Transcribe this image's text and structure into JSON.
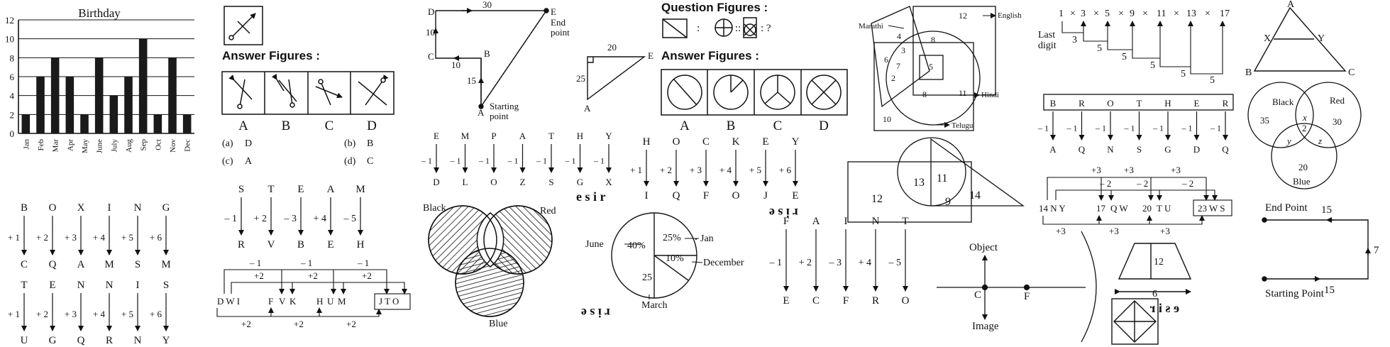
{
  "chart_data": {
    "type": "bar",
    "title": "Birthday",
    "categories": [
      "Jan",
      "Feb",
      "Mar",
      "Apr",
      "May",
      "June",
      "July",
      "Aug",
      "Sep",
      "Oct",
      "Nov",
      "Dec"
    ],
    "values": [
      2,
      6,
      8,
      6,
      2,
      8,
      4,
      6,
      10,
      2,
      8,
      2
    ],
    "yticks": [
      "0",
      "2",
      "4",
      "6",
      "8",
      "10",
      "12"
    ],
    "ylim": [
      0,
      12
    ],
    "grid": true
  },
  "answer_figures_1": {
    "heading": "Answer Figures :",
    "labels": [
      "A",
      "B",
      "C",
      "D"
    ],
    "options": [
      "(a)",
      "D",
      "(b)",
      "B",
      "(c)",
      "A",
      "(d)",
      "C"
    ]
  },
  "path_diagram": {
    "edges": [
      "30",
      "10",
      "10",
      "15"
    ],
    "letters": [
      "D",
      "E",
      "C",
      "B",
      "A"
    ],
    "end_label_1": "End",
    "end_label_2": "point",
    "start_label_1": "Starting",
    "start_label_2": "point"
  },
  "triangle": {
    "top": "20",
    "side": "25",
    "e": "E",
    "a": "A"
  },
  "question_figures": {
    "heading": "Question Figures :",
    "sep1": ":",
    "sep2": "::",
    "sep3": ": ?",
    "answer_heading": "Answer Figures :",
    "labels": [
      "A",
      "B",
      "C",
      "D"
    ]
  },
  "language_venn": {
    "english": "English",
    "marathi": "Marathi",
    "hindi": "Hindi",
    "telugu": "Telugu",
    "numbers": [
      "12",
      "4",
      "3",
      "6",
      "7",
      "8",
      "5",
      "2",
      "8",
      "11",
      "10"
    ]
  },
  "last_digit": {
    "label_1": "Last",
    "label_2": "digit",
    "series": [
      "1",
      "×",
      "3",
      "×",
      "5",
      "×",
      "9",
      "×",
      "11",
      "×",
      "13",
      "×",
      "17"
    ],
    "steps": [
      "3",
      "5",
      "5",
      "5",
      "5",
      "5"
    ]
  },
  "triangle_xy": {
    "letters": [
      "A",
      "X",
      "Y",
      "B",
      "C"
    ]
  },
  "color_venn_1": {
    "black": "Black",
    "red": "Red",
    "blue": "Blue",
    "values": [
      "35",
      "30",
      "20",
      "x",
      "2",
      "y",
      "z"
    ]
  },
  "brother_code": {
    "word": [
      "B",
      "R",
      "O",
      "T",
      "H",
      "E",
      "R"
    ],
    "steps": [
      "– 1",
      "– 1",
      "– 1",
      "– 1",
      "– 1",
      "– 1",
      "– 1"
    ],
    "result": [
      "A",
      "Q",
      "N",
      "S",
      "G",
      "D",
      "Q"
    ]
  },
  "emphasis_code": {
    "top": [
      "E",
      "M",
      "P",
      "A",
      "T",
      "H",
      "Y"
    ],
    "steps": [
      "– 1",
      "– 1",
      "– 1",
      "– 1",
      "– 1",
      "– 1",
      "– 1"
    ],
    "bottom": [
      "D",
      "L",
      "O",
      "Z",
      "S",
      "G",
      "X"
    ]
  },
  "honky_code": {
    "top": [
      "H",
      "O",
      "C",
      "K",
      "E",
      "Y"
    ],
    "steps": [
      "+ 1",
      "+ 2",
      "+ 3",
      "+ 4",
      "+ 5",
      "+ 6"
    ],
    "bottom": [
      "I",
      "Q",
      "F",
      "O",
      "J",
      "E"
    ]
  },
  "boxing_code": {
    "top": [
      "B",
      "O",
      "X",
      "I",
      "N",
      "G"
    ],
    "steps": [
      "+ 1",
      "+ 2",
      "+ 3",
      "+ 4",
      "+ 5",
      "+ 6"
    ],
    "bottom": [
      "C",
      "Q",
      "A",
      "M",
      "S",
      "M"
    ]
  },
  "tennis_code": {
    "top": [
      "T",
      "E",
      "N",
      "N",
      "I",
      "S"
    ],
    "steps": [
      "+ 1",
      "+ 2",
      "+ 3",
      "+ 4",
      "+ 5",
      "+ 6"
    ],
    "bottom": [
      "U",
      "G",
      "Q",
      "R",
      "N",
      "Y"
    ]
  },
  "steam_code": {
    "top": [
      "S",
      "T",
      "E",
      "A",
      "M"
    ],
    "steps": [
      "– 1",
      "+ 2",
      "– 3",
      "+ 4",
      "– 5"
    ],
    "bottom": [
      "R",
      "V",
      "B",
      "E",
      "H"
    ]
  },
  "fairt_code": {
    "top": [
      "F",
      "A",
      "I",
      "N",
      "T"
    ],
    "steps": [
      "– 1",
      "+ 2",
      "– 3",
      "+ 4",
      "– 5"
    ],
    "bottom": [
      "E",
      "C",
      "F",
      "R",
      "O"
    ]
  },
  "series_dwi": {
    "groups": [
      "D W I",
      "F",
      "V",
      "K",
      "H",
      "U",
      "M",
      "J  T  O"
    ],
    "top_steps": [
      "– 1",
      "– 1",
      "– 1"
    ],
    "mid_steps": [
      "+2",
      "+2",
      "+2"
    ],
    "bottom_steps": [
      "+2",
      "+2",
      "+2"
    ]
  },
  "series_14ny": {
    "groups": [
      "14 N Y",
      "17",
      "Q W",
      "20",
      "T U",
      "23 W S"
    ],
    "top_steps": [
      "+3",
      "+3",
      "+3"
    ],
    "mid_steps": [
      "– 2",
      "– 2",
      "– 2"
    ],
    "bottom_steps": [
      "+3",
      "+3",
      "+3"
    ]
  },
  "shape_venn": {
    "values": [
      "12",
      "13",
      "11",
      "9",
      "14"
    ]
  },
  "shaded_venn": {
    "black": "Black",
    "red": "Red",
    "blue": "Blue"
  },
  "pie": {
    "slices": [
      "25%",
      "10%",
      "25",
      "40%"
    ],
    "labels": [
      "Jan",
      "December",
      "March",
      "June"
    ]
  },
  "mirror_text": [
    "e s i r",
    "r i s e",
    "r i s e",
    "e s i r"
  ],
  "optics": {
    "object": "Object",
    "image": "Image",
    "c": "C",
    "f": "F"
  },
  "trapezium": {
    "height": "12",
    "base": "6"
  },
  "route": {
    "end": "End Point",
    "start": "Starting Point",
    "top": "15",
    "right": "7",
    "bottom": "15"
  }
}
